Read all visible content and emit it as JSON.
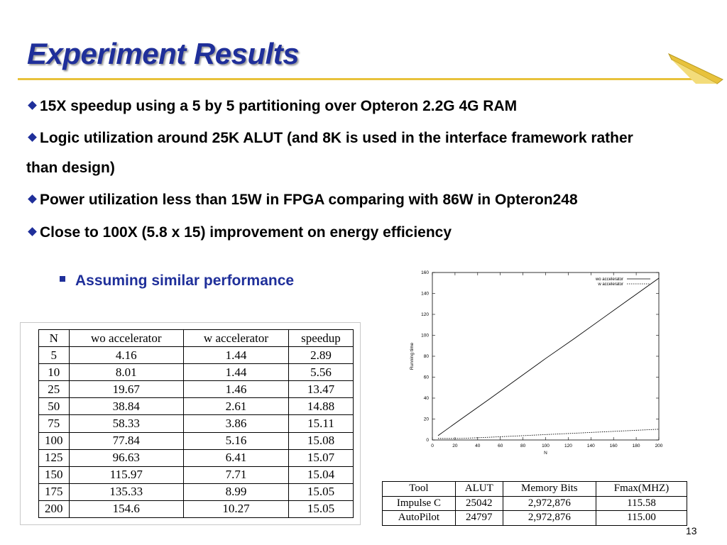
{
  "slide": {
    "title": "Experiment Results",
    "bullets": [
      "15X speedup using a 5 by 5 partitioning over Opteron 2.2G 4G RAM",
      "Logic utilization around 25K ALUT (and 8K is used in the interface framework rather than design)",
      "Power utilization less than 15W in FPGA comparing with 86W in Opteron248",
      "Close to 100X (5.8 x 15) improvement on energy efficiency"
    ],
    "sub_bullet": "Assuming similar performance",
    "page_number": "13"
  },
  "colors": {
    "title": "#1f2f9a",
    "rule": "#e8c23c",
    "bullet_marker": "#1f2f9a"
  },
  "results_table": {
    "headers": [
      "N",
      "wo accelerator",
      "w accelerator",
      "speedup"
    ],
    "rows": [
      [
        "5",
        "4.16",
        "1.44",
        "2.89"
      ],
      [
        "10",
        "8.01",
        "1.44",
        "5.56"
      ],
      [
        "25",
        "19.67",
        "1.46",
        "13.47"
      ],
      [
        "50",
        "38.84",
        "2.61",
        "14.88"
      ],
      [
        "75",
        "58.33",
        "3.86",
        "15.11"
      ],
      [
        "100",
        "77.84",
        "5.16",
        "15.08"
      ],
      [
        "125",
        "96.63",
        "6.41",
        "15.07"
      ],
      [
        "150",
        "115.97",
        "7.71",
        "15.04"
      ],
      [
        "175",
        "135.33",
        "8.99",
        "15.05"
      ],
      [
        "200",
        "154.6",
        "10.27",
        "15.05"
      ]
    ]
  },
  "tool_table": {
    "headers": [
      "Tool",
      "ALUT",
      "Memory Bits",
      "Fmax(MHZ)"
    ],
    "rows": [
      [
        "Impulse C",
        "25042",
        "2,972,876",
        "115.58"
      ],
      [
        "AutoPilot",
        "24797",
        "2,972,876",
        "115.00"
      ]
    ]
  },
  "chart_data": {
    "type": "line",
    "xlabel": "N",
    "ylabel": "Running time",
    "xlim": [
      0,
      200
    ],
    "ylim": [
      0,
      160
    ],
    "xticks": [
      0,
      20,
      40,
      60,
      80,
      100,
      120,
      140,
      160,
      180,
      200
    ],
    "xtick_labels": [
      "0",
      "20",
      "40",
      "60",
      "80",
      "100",
      "120",
      "140",
      "160",
      "180",
      "200"
    ],
    "yticks": [
      0,
      20,
      40,
      60,
      80,
      100,
      120,
      140,
      160
    ],
    "ytick_labels": [
      "0",
      "20",
      "40",
      "60",
      "80",
      "100",
      "120",
      "140",
      "160"
    ],
    "legend_position": "top-right",
    "grid": false,
    "x": [
      5,
      10,
      25,
      50,
      75,
      100,
      125,
      150,
      175,
      200
    ],
    "series": [
      {
        "name": "wo accelerator",
        "values": [
          4.16,
          8.01,
          19.67,
          38.84,
          58.33,
          77.84,
          96.63,
          115.97,
          135.33,
          154.6
        ],
        "style": "solid"
      },
      {
        "name": "w accelerator",
        "values": [
          1.44,
          1.44,
          1.46,
          2.61,
          3.86,
          5.16,
          6.41,
          7.71,
          8.99,
          10.27
        ],
        "style": "dotted"
      }
    ]
  }
}
